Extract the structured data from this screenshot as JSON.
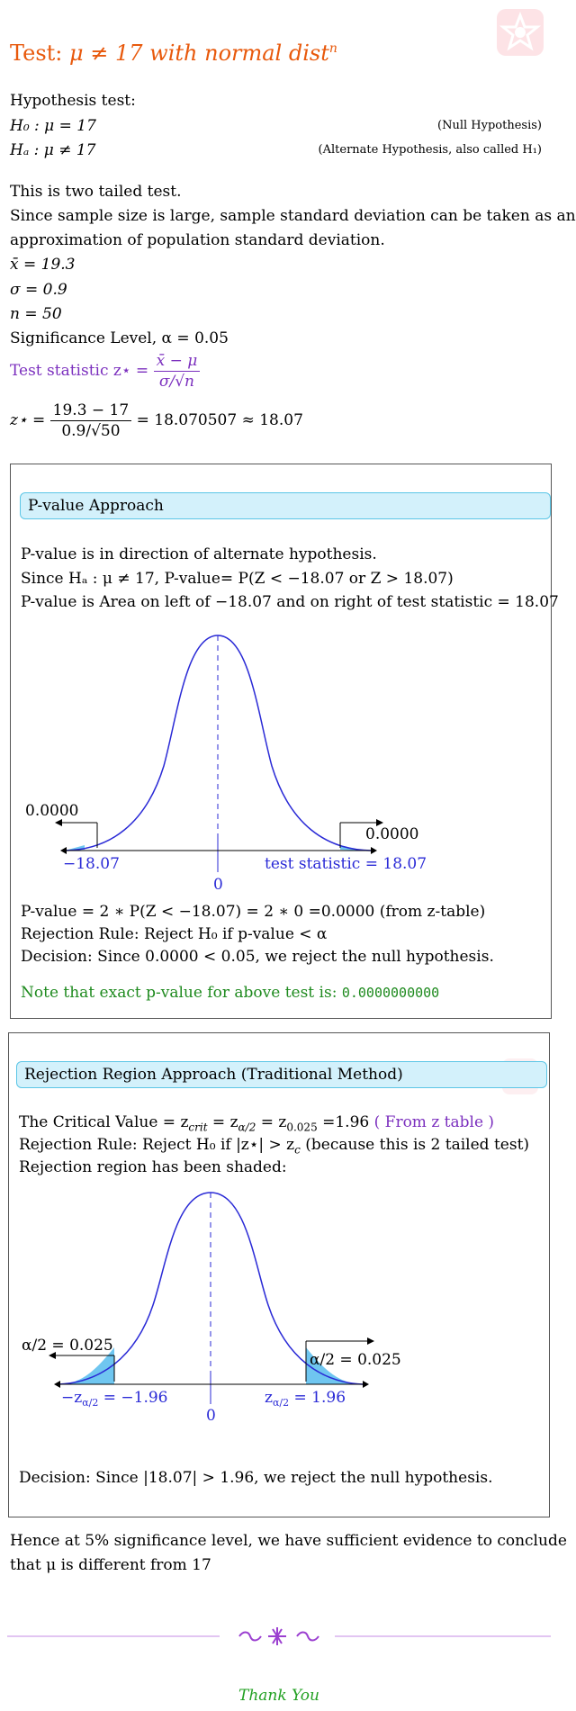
{
  "title": {
    "prefix": "Test: ",
    "math": "μ ≠ 17 with normal dist",
    "sup": "n"
  },
  "hypothesis": {
    "heading": "Hypothesis test:",
    "h0": "H₀ : μ = 17",
    "h0_note": "(Null Hypothesis)",
    "ha": "Hₐ : μ ≠ 17",
    "ha_note": "(Alternate Hypothesis, also called H₁)"
  },
  "intro": {
    "two_tailed": "This is two tailed test.",
    "large_sample_1": "Since sample size is large, sample standard deviation can be taken as an",
    "large_sample_2": "approximation of population standard deviation.",
    "xbar": "x̄ = 19.3",
    "sigma": "σ = 0.9",
    "n": "n = 50",
    "alpha": "Significance Level, α = 0.05",
    "ts_label": "Test statistic z⋆ = ",
    "ts_num": "x̄ − μ",
    "ts_den": "σ/√n",
    "z_lhs": "z⋆ = ",
    "z_num": "19.3 − 17",
    "z_den": "0.9/√50",
    "z_rhs": " = 18.070507 ≈ 18.07"
  },
  "pvalue_section": {
    "pill": "P-value Approach",
    "line1": "P-value is in direction of alternate hypothesis.",
    "line2": "Since Hₐ : μ ≠ 17, P-value= P(Z < −18.07 or Z > 18.07)",
    "line3": "P-value is Area on left of −18.07 and on right of test statistic = 18.07",
    "left_area": "0.0000",
    "right_area": "0.0000",
    "left_tick": "−18.07",
    "right_tick": "test statistic = 18.07",
    "center_tick": "0",
    "calc": "P-value = 2 ∗ P(Z < −18.07) = 2 ∗ 0 =0.0000 (from z-table)",
    "rule": "Rejection Rule: Reject H₀ if p-value < α",
    "decision": "Decision: Since 0.0000 < 0.05, we reject the null hypothesis.",
    "note_text": "Note that exact p-value for above test is: ",
    "note_value": "0.0000000000"
  },
  "rejection_section": {
    "pill": "Rejection Region Approach (Traditional Method)",
    "crit_1": "The Critical Value = z",
    "crit_sub1": "crit",
    "crit_2": " = z",
    "crit_sub2": "α/2",
    "crit_3": " = z",
    "crit_sub3": "0.025",
    "crit_4": " =1.96 ",
    "crit_link": "( From z table )",
    "rule": "Rejection Rule: Reject H₀ if |z⋆| > z",
    "rule_sub": "c",
    "rule_tail": " (because this is 2 tailed test)",
    "shaded": "Rejection region has been shaded:",
    "left_area": "α/2 = 0.025",
    "right_area": "α/2 = 0.025",
    "left_tick": "−z",
    "left_tick_sub": "α/2",
    "left_tick_val": " = −1.96",
    "right_tick": "z",
    "right_tick_sub": "α/2",
    "right_tick_val": " = 1.96",
    "center_tick": "0",
    "decision": "Decision: Since |18.07| > 1.96, we reject the null hypothesis."
  },
  "conclusion": {
    "line1": "Hence at 5% significance level, we have sufficient evidence to conclude",
    "line2": "that μ is different from 17"
  },
  "footer": {
    "thanks": "Thank You"
  },
  "colors": {
    "title": "#e8590c",
    "purple": "#7b2fbe",
    "green": "#1e8a1e",
    "curve": "#2a2ad6",
    "shade": "#6fc6f0",
    "pill_bg": "#d3f1fb",
    "divider": "#c58be6"
  }
}
